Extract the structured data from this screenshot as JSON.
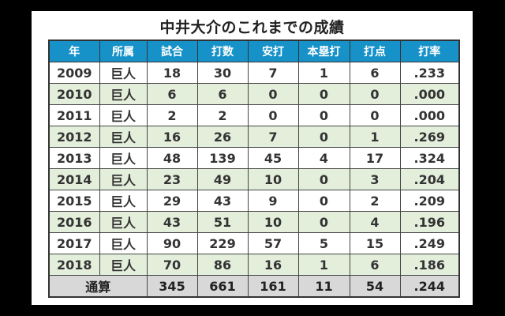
{
  "title": "中井大介のこれまでの成績",
  "table": {
    "headers": [
      "年",
      "所属",
      "試合",
      "打数",
      "安打",
      "本塁打",
      "打点",
      "打率"
    ],
    "rows": [
      [
        "2009",
        "巨人",
        "18",
        "30",
        "7",
        "1",
        "6",
        ".233"
      ],
      [
        "2010",
        "巨人",
        "6",
        "6",
        "0",
        "0",
        "0",
        ".000"
      ],
      [
        "2011",
        "巨人",
        "2",
        "2",
        "0",
        "0",
        "0",
        ".000"
      ],
      [
        "2012",
        "巨人",
        "16",
        "26",
        "7",
        "0",
        "1",
        ".269"
      ],
      [
        "2013",
        "巨人",
        "48",
        "139",
        "45",
        "4",
        "17",
        ".324"
      ],
      [
        "2014",
        "巨人",
        "23",
        "49",
        "10",
        "0",
        "3",
        ".204"
      ],
      [
        "2015",
        "巨人",
        "29",
        "43",
        "9",
        "0",
        "2",
        ".209"
      ],
      [
        "2016",
        "巨人",
        "43",
        "51",
        "10",
        "0",
        "4",
        ".196"
      ],
      [
        "2017",
        "巨人",
        "90",
        "229",
        "57",
        "5",
        "15",
        ".249"
      ],
      [
        "2018",
        "巨人",
        "70",
        "86",
        "16",
        "1",
        "6",
        ".186"
      ]
    ],
    "total": {
      "label": "通算",
      "values": [
        "345",
        "661",
        "161",
        "11",
        "54",
        ".244"
      ]
    }
  },
  "colors": {
    "header_bg": "#1792c9",
    "alt_row_bg": "#e3eedb",
    "total_row_bg": "#d8d8d8"
  }
}
